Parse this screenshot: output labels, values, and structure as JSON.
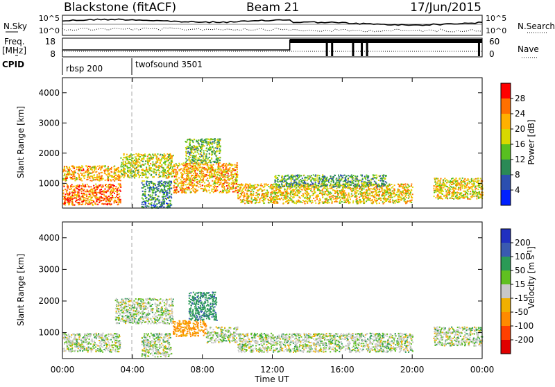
{
  "header": {
    "station": "Blackstone (fitACF)",
    "beam": "Beam 21",
    "date": "17/Jun/2015"
  },
  "status": {
    "nsky_label": "N.Sky",
    "nsearch_label": "N.Search",
    "nsky_ticks": [
      "10^5",
      "10^0"
    ],
    "nsearch_ticks": [
      "10^5",
      "10^0"
    ],
    "freq_label_line1": "Freq.",
    "freq_label_line2": "[MHz]",
    "freq_ticks": [
      "18",
      "8"
    ],
    "nave_label": "Nave",
    "nave_ticks": [
      "60",
      "0"
    ],
    "cpid_label": "CPID",
    "cpid_segments": [
      {
        "name": "rbsp 200",
        "start_hour": 0,
        "end_hour": 4
      },
      {
        "name": "twofsound 3501",
        "start_hour": 4,
        "end_hour": 24
      }
    ]
  },
  "axes": {
    "xlabel": "Time UT",
    "x_ticks": [
      "00:00",
      "04:00",
      "08:00",
      "12:00",
      "16:00",
      "20:00",
      "00:00"
    ],
    "ylabel": "Slant Range [km]",
    "y_ticks": [
      "1000",
      "2000",
      "3000",
      "4000"
    ]
  },
  "colorbars": {
    "power": {
      "label": "Power [dB]",
      "ticks": [
        "4",
        "8",
        "12",
        "16",
        "20",
        "24",
        "28"
      ],
      "colors": [
        "#0020ff",
        "#2c4fb0",
        "#2a8a56",
        "#58c020",
        "#d8d800",
        "#ffb000",
        "#ff7000",
        "#ff0000"
      ]
    },
    "velocity": {
      "label_main": "Velocity [m s",
      "label_sup": "-1",
      "label_end": "]",
      "ticks": [
        "200",
        "100",
        "50",
        "15",
        "-15",
        "-50",
        "-100",
        "-200"
      ],
      "colors": [
        "#2030c0",
        "#3a5ab0",
        "#2a9a56",
        "#60c020",
        "#c8c8c8",
        "#f0b000",
        "#ff8a00",
        "#ff4000",
        "#e00000"
      ]
    }
  },
  "chart_data": [
    {
      "type": "heatmap",
      "title": "",
      "quantity": "Power",
      "units": "dB",
      "xlabel": "Time UT",
      "ylabel": "Slant Range [km]",
      "xlim_hours": [
        0,
        24
      ],
      "ylim_km": [
        180,
        4500
      ],
      "scatter_bands": [
        {
          "t_start": 0.0,
          "t_end": 3.3,
          "r_low": 1100,
          "r_high": 1600,
          "power_db": 22
        },
        {
          "t_start": 0.0,
          "t_end": 3.3,
          "r_low": 300,
          "r_high": 1000,
          "power_db": 25
        },
        {
          "t_start": 3.3,
          "t_end": 6.3,
          "r_low": 1200,
          "r_high": 2000,
          "power_db": 18
        },
        {
          "t_start": 4.5,
          "t_end": 6.2,
          "r_low": 200,
          "r_high": 1100,
          "power_db": 10
        },
        {
          "t_start": 6.3,
          "t_end": 10.0,
          "r_low": 700,
          "r_high": 1700,
          "power_db": 22
        },
        {
          "t_start": 7.0,
          "t_end": 9.0,
          "r_low": 1700,
          "r_high": 2500,
          "power_db": 14
        },
        {
          "t_start": 10.0,
          "t_end": 20.0,
          "r_low": 350,
          "r_high": 1000,
          "power_db": 20
        },
        {
          "t_start": 12.0,
          "t_end": 18.5,
          "r_low": 900,
          "r_high": 1300,
          "power_db": 12
        },
        {
          "t_start": 21.2,
          "t_end": 24.0,
          "r_low": 500,
          "r_high": 1200,
          "power_db": 20
        }
      ]
    },
    {
      "type": "heatmap",
      "title": "",
      "quantity": "Velocity",
      "units": "m s^-1",
      "xlabel": "Time UT",
      "ylabel": "Slant Range [km]",
      "xlim_hours": [
        0,
        24
      ],
      "ylim_km": [
        180,
        4500
      ],
      "scatter_bands": [
        {
          "t_start": 0.0,
          "t_end": 3.3,
          "r_low": 400,
          "r_high": 1000,
          "velocity": 0
        },
        {
          "t_start": 3.0,
          "t_end": 6.3,
          "r_low": 1300,
          "r_high": 2100,
          "velocity": 0
        },
        {
          "t_start": 4.5,
          "t_end": 6.2,
          "r_low": 250,
          "r_high": 1000,
          "velocity": 0
        },
        {
          "t_start": 6.3,
          "t_end": 8.2,
          "r_low": 900,
          "r_high": 1400,
          "velocity": -60
        },
        {
          "t_start": 7.2,
          "t_end": 8.8,
          "r_low": 1400,
          "r_high": 2300,
          "velocity": 40
        },
        {
          "t_start": 8.2,
          "t_end": 10.0,
          "r_low": 700,
          "r_high": 1200,
          "velocity": 0
        },
        {
          "t_start": 10.0,
          "t_end": 20.0,
          "r_low": 400,
          "r_high": 1000,
          "velocity": 0
        },
        {
          "t_start": 21.2,
          "t_end": 24.0,
          "r_low": 600,
          "r_high": 1200,
          "velocity": 0
        }
      ]
    }
  ]
}
